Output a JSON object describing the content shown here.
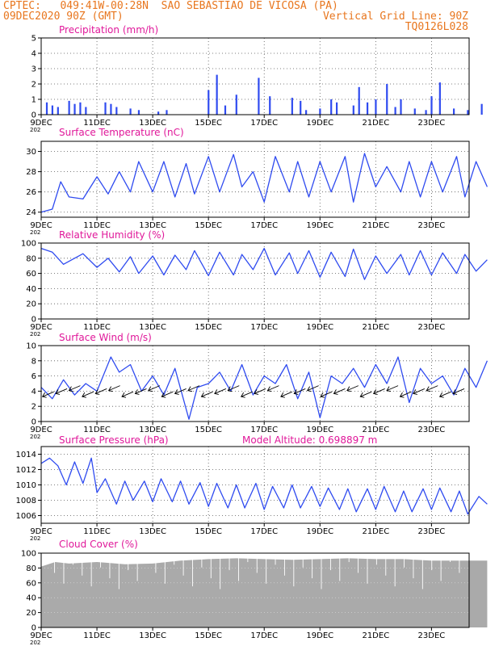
{
  "header": {
    "line1_left": "CPTEC:   049:41W-00:28N  SAO SEBASTIAO DE VICOSA (PA)",
    "line2_left": "09DEC2020 90Z (GMT)",
    "line2_right": "Vertical Grid Line: 90Z",
    "line3_right": "TQ0126L028"
  },
  "colors": {
    "header": "#e8761e",
    "title": "#e0189a",
    "series": "#2f4bf0",
    "bars": "#2f4bf0",
    "cloud": "#aaaaaa",
    "arrow": "#000000"
  },
  "x_ticks": [
    "9DEC",
    "11DEC",
    "13DEC",
    "15DEC",
    "17DEC",
    "19DEC",
    "21DEC",
    "23DEC"
  ],
  "x_sub_label": "202",
  "panels": {
    "precip": {
      "title": "Precipitation (mm/h)",
      "y_ticks": [
        "0",
        "1",
        "2",
        "3",
        "4",
        "5"
      ]
    },
    "temp": {
      "title": "Surface Temperature (nC)",
      "y_ticks": [
        "24",
        "26",
        "28",
        "30"
      ]
    },
    "humid": {
      "title": "Relative Humidity (%)",
      "y_ticks": [
        "0",
        "20",
        "40",
        "60",
        "80",
        "100"
      ]
    },
    "wind": {
      "title": "Surface Wind (m/s)",
      "y_ticks": [
        "0",
        "2",
        "4",
        "6",
        "8",
        "10"
      ]
    },
    "press": {
      "title": "Surface Pressure (hPa)",
      "extra": "Model Altitude: 0.698897 m",
      "y_ticks": [
        "1006",
        "1008",
        "1010",
        "1012",
        "1014"
      ]
    },
    "cloud": {
      "title": "Cloud Cover (%)",
      "y_ticks": [
        "0",
        "20",
        "40",
        "60",
        "80",
        "100"
      ]
    }
  },
  "chart_data": [
    {
      "type": "bar",
      "title": "Precipitation (mm/h)",
      "ylabel": "mm/h",
      "ylim": [
        0,
        5
      ],
      "x_start": "09DEC2020",
      "x_days": [
        0.2,
        0.4,
        0.6,
        1.0,
        1.2,
        1.4,
        1.6,
        2.3,
        2.5,
        2.7,
        3.2,
        3.5,
        4.2,
        4.5,
        6.0,
        6.3,
        6.6,
        7.0,
        7.8,
        8.2,
        9.0,
        9.3,
        9.5,
        10.0,
        10.4,
        10.6,
        11.2,
        11.4,
        11.7,
        12.0,
        12.4,
        12.7,
        12.9,
        13.4,
        13.8,
        14.0,
        14.3,
        14.8,
        15.3,
        15.8
      ],
      "values": [
        0.8,
        0.6,
        0.5,
        0.9,
        0.7,
        0.8,
        0.5,
        0.8,
        0.7,
        0.5,
        0.4,
        0.3,
        0.2,
        0.3,
        1.6,
        2.6,
        0.6,
        1.3,
        2.4,
        1.2,
        1.1,
        0.9,
        0.3,
        0.4,
        1.0,
        0.8,
        0.6,
        1.8,
        0.8,
        1.0,
        2.0,
        0.5,
        1.0,
        0.4,
        0.3,
        1.2,
        2.1,
        0.4,
        0.3,
        0.7
      ]
    },
    {
      "type": "line",
      "title": "Surface Temperature (nC)",
      "ylim": [
        23.5,
        31
      ],
      "x_days": [
        0.0,
        0.4,
        0.7,
        1.0,
        1.5,
        2.0,
        2.4,
        2.8,
        3.2,
        3.5,
        4.0,
        4.4,
        4.8,
        5.2,
        5.5,
        6.0,
        6.4,
        6.9,
        7.2,
        7.6,
        8.0,
        8.4,
        8.9,
        9.2,
        9.6,
        10.0,
        10.4,
        10.9,
        11.2,
        11.6,
        12.0,
        12.4,
        12.9,
        13.2,
        13.6,
        14.0,
        14.4,
        14.9,
        15.2,
        15.6,
        16.0
      ],
      "values": [
        24.0,
        24.3,
        27.0,
        25.5,
        25.3,
        27.5,
        25.8,
        28.0,
        26.0,
        29.0,
        26.0,
        29.0,
        25.5,
        28.8,
        25.8,
        29.5,
        26.0,
        29.7,
        26.5,
        28.0,
        25.0,
        29.5,
        26.0,
        29.0,
        25.5,
        29.0,
        26.0,
        29.5,
        25.0,
        29.8,
        26.5,
        28.5,
        26.0,
        29.0,
        25.5,
        29.0,
        26.0,
        29.5,
        25.5,
        29.0,
        26.5
      ],
      "name": ""
    },
    {
      "type": "line",
      "title": "Relative Humidity (%)",
      "ylim": [
        0,
        100
      ],
      "x_days": [
        0.0,
        0.4,
        0.8,
        1.2,
        1.5,
        2.0,
        2.4,
        2.8,
        3.2,
        3.5,
        4.0,
        4.4,
        4.8,
        5.2,
        5.5,
        6.0,
        6.4,
        6.9,
        7.2,
        7.6,
        8.0,
        8.4,
        8.9,
        9.2,
        9.6,
        10.0,
        10.4,
        10.9,
        11.2,
        11.6,
        12.0,
        12.4,
        12.9,
        13.2,
        13.6,
        14.0,
        14.4,
        14.9,
        15.2,
        15.6,
        16.0
      ],
      "values": [
        93,
        88,
        72,
        80,
        86,
        68,
        80,
        62,
        82,
        60,
        83,
        58,
        84,
        65,
        90,
        57,
        88,
        58,
        85,
        65,
        93,
        58,
        87,
        60,
        90,
        55,
        88,
        56,
        92,
        52,
        83,
        60,
        85,
        58,
        90,
        58,
        87,
        60,
        85,
        63,
        78
      ]
    },
    {
      "type": "line",
      "title": "Surface Wind (m/s)",
      "ylim": [
        0,
        10
      ],
      "x_days": [
        0.0,
        0.4,
        0.8,
        1.2,
        1.6,
        2.0,
        2.5,
        2.8,
        3.2,
        3.6,
        4.0,
        4.4,
        4.8,
        5.3,
        5.6,
        6.0,
        6.4,
        6.8,
        7.2,
        7.6,
        8.0,
        8.4,
        8.8,
        9.2,
        9.6,
        10.0,
        10.4,
        10.8,
        11.2,
        11.6,
        12.0,
        12.4,
        12.8,
        13.2,
        13.6,
        14.0,
        14.4,
        14.8,
        15.2,
        15.6,
        16.0
      ],
      "values": [
        4.5,
        3.0,
        5.5,
        3.5,
        5.0,
        4.0,
        8.5,
        6.5,
        7.5,
        4.0,
        6.0,
        3.5,
        7.0,
        0.3,
        4.5,
        5.0,
        6.5,
        4.0,
        7.5,
        3.5,
        6.0,
        5.0,
        7.5,
        3.0,
        6.5,
        0.5,
        6.0,
        5.0,
        7.0,
        4.5,
        7.5,
        5.0,
        8.5,
        2.5,
        7.0,
        5.0,
        6.0,
        3.5,
        7.0,
        4.5,
        8.0
      ]
    },
    {
      "type": "line",
      "title": "Surface Pressure (hPa)",
      "ylim": [
        1005,
        1015
      ],
      "x_days": [
        0.0,
        0.3,
        0.6,
        0.9,
        1.2,
        1.5,
        1.8,
        2.0,
        2.3,
        2.7,
        3.0,
        3.3,
        3.7,
        4.0,
        4.3,
        4.7,
        5.0,
        5.3,
        5.7,
        6.0,
        6.3,
        6.7,
        7.0,
        7.3,
        7.7,
        8.0,
        8.3,
        8.7,
        9.0,
        9.3,
        9.7,
        10.0,
        10.3,
        10.7,
        11.0,
        11.3,
        11.7,
        12.0,
        12.3,
        12.7,
        13.0,
        13.3,
        13.7,
        14.0,
        14.3,
        14.7,
        15.0,
        15.3,
        15.7,
        16.0
      ],
      "values": [
        1012.8,
        1013.5,
        1012.5,
        1010.0,
        1013.0,
        1010.2,
        1013.5,
        1009.0,
        1010.8,
        1007.5,
        1010.5,
        1008.0,
        1010.5,
        1007.8,
        1010.8,
        1007.8,
        1010.5,
        1007.5,
        1010.3,
        1007.2,
        1010.2,
        1007.0,
        1010.0,
        1007.0,
        1010.2,
        1006.8,
        1009.8,
        1007.0,
        1010.0,
        1007.0,
        1009.8,
        1007.2,
        1009.6,
        1006.8,
        1009.5,
        1006.5,
        1009.5,
        1006.8,
        1009.8,
        1006.5,
        1009.2,
        1006.5,
        1009.5,
        1006.8,
        1009.6,
        1006.5,
        1009.2,
        1006.2,
        1008.5,
        1007.5
      ]
    },
    {
      "type": "area",
      "title": "Cloud Cover (%)",
      "ylim": [
        0,
        100
      ],
      "x_days": [
        0.0,
        0.5,
        1.0,
        2.0,
        3.0,
        4.0,
        5.0,
        6.0,
        7.0,
        8.0,
        9.0,
        10.0,
        11.0,
        12.0,
        13.0,
        14.0,
        15.0,
        16.0
      ],
      "values": [
        82,
        88,
        86,
        88,
        85,
        86,
        90,
        92,
        93,
        92,
        91,
        92,
        93,
        92,
        92,
        90,
        90,
        90
      ]
    }
  ]
}
